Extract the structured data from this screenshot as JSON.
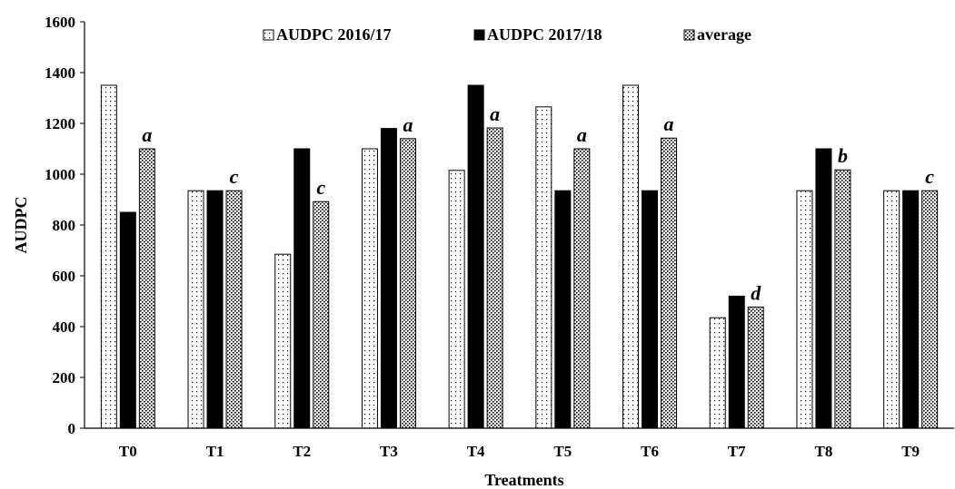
{
  "chart_data": {
    "type": "bar",
    "xlabel": "Treatments",
    "ylabel": "AUDPC",
    "ylim": [
      0,
      1600
    ],
    "yticks": [
      0,
      200,
      400,
      600,
      800,
      1000,
      1200,
      1400,
      1600
    ],
    "grid": false,
    "legend_position": "top-center",
    "categories": [
      "T0",
      "T1",
      "T2",
      "T3",
      "T4",
      "T5",
      "T6",
      "T7",
      "T8",
      "T9"
    ],
    "series": [
      {
        "name": "AUDPC 2016/17",
        "pattern": "sparse-dots",
        "values": [
          1350,
          935,
          685,
          1100,
          1015,
          1265,
          1350,
          435,
          935,
          935
        ]
      },
      {
        "name": "AUDPC 2017/18",
        "pattern": "solid-black",
        "values": [
          850,
          935,
          1100,
          1180,
          1350,
          935,
          935,
          520,
          1100,
          935
        ]
      },
      {
        "name": "average",
        "pattern": "dense-dots",
        "values": [
          1100,
          935,
          892,
          1140,
          1182,
          1100,
          1142,
          477,
          1017,
          935
        ]
      }
    ],
    "annotations": [
      "a",
      "c",
      "c",
      "a",
      "a",
      "a",
      "a",
      "d",
      "b",
      "c"
    ]
  }
}
